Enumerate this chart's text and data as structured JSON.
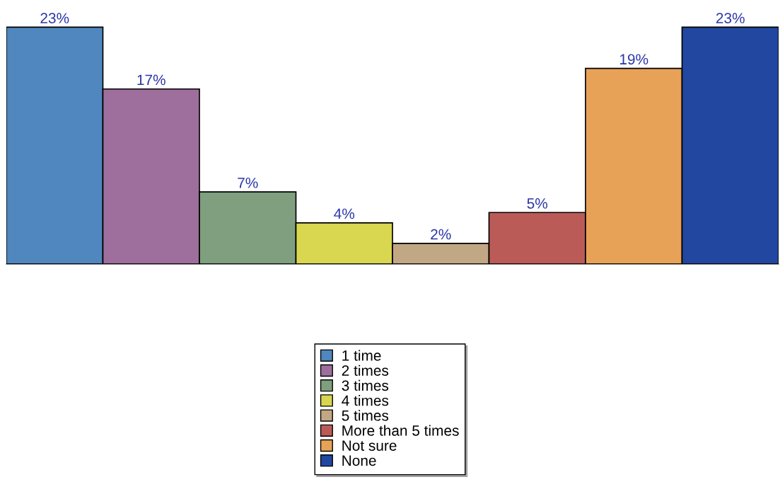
{
  "chart_data": {
    "type": "bar",
    "categories": [
      null
    ],
    "series": [
      {
        "name": "1 time",
        "color": "#4f87be",
        "values": [
          23
        ],
        "value_labels": [
          "23%"
        ]
      },
      {
        "name": "2 times",
        "color": "#9e6f9c",
        "values": [
          17
        ],
        "value_labels": [
          "17%"
        ]
      },
      {
        "name": "3 times",
        "color": "#7f9f7f",
        "values": [
          7
        ],
        "value_labels": [
          "7%"
        ]
      },
      {
        "name": "4 times",
        "color": "#d9d650",
        "values": [
          4
        ],
        "value_labels": [
          "4%"
        ]
      },
      {
        "name": "5 times",
        "color": "#c1a784",
        "values": [
          2
        ],
        "value_labels": [
          "2%"
        ]
      },
      {
        "name": "More than 5 times",
        "color": "#bb5b57",
        "values": [
          5
        ],
        "value_labels": [
          "5%"
        ]
      },
      {
        "name": "Not sure",
        "color": "#e8a257",
        "values": [
          19
        ],
        "value_labels": [
          "19%"
        ]
      },
      {
        "name": "None",
        "color": "#2147a0",
        "values": [
          23
        ],
        "value_labels": [
          "23%"
        ]
      }
    ],
    "grid": false,
    "legend": "bottom"
  }
}
